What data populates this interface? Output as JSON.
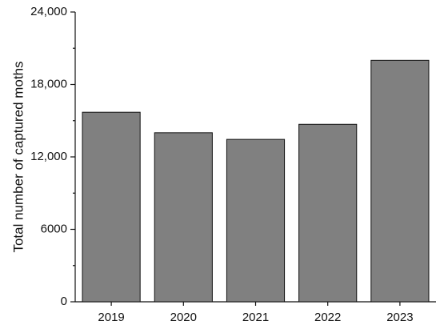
{
  "chart_data": {
    "type": "bar",
    "y_label": "Total number of captured moths",
    "categories": [
      "2019",
      "2020",
      "2021",
      "2022",
      "2023"
    ],
    "values": [
      15700,
      14000,
      13450,
      14700,
      20000
    ],
    "color": "#808080",
    "ylim": [
      0,
      24000
    ],
    "yticks": [
      0,
      6000,
      {
        "value": 12000,
        "label": "12,000"
      },
      {
        "value": 18000,
        "label": "18,000"
      },
      {
        "value": 24000,
        "label": "24,000"
      }
    ],
    "grid": false
  }
}
